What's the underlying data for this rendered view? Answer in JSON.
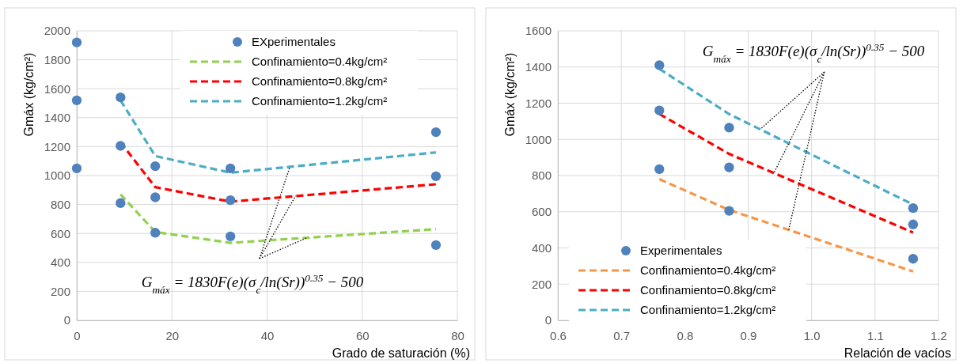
{
  "chart_data": [
    {
      "type": "scatter",
      "xlabel": "Grado de saturación (%)",
      "ylabel": "Gmáx (kg/cm²)",
      "xlim": [
        0,
        80
      ],
      "xticks": [
        0,
        20,
        40,
        60,
        80
      ],
      "ylim": [
        0,
        2000
      ],
      "yticks": [
        0,
        200,
        400,
        600,
        800,
        1000,
        1200,
        1400,
        1600,
        1800,
        2000
      ],
      "grid": true,
      "legend": "top right",
      "annotations": [
        {
          "text": "G$_{máx}$ = 1830F(e)(σ$_{c}$/ln(Sr))$^{0.35}$ − 500",
          "x": 46,
          "y": 860
        }
      ],
      "series": [
        {
          "name": "EXperimentales",
          "type": "scatter",
          "marker": "circle",
          "color": "#4f81bd",
          "x": [
            0,
            0,
            0,
            9.2,
            9.2,
            9.2,
            16.5,
            16.5,
            16.5,
            32.3,
            32.3,
            32.3,
            75.5,
            75.5,
            75.5
          ],
          "values": [
            1920,
            1520,
            1050,
            1540,
            1205,
            810,
            1065,
            850,
            605,
            1050,
            830,
            580,
            1300,
            995,
            520
          ]
        },
        {
          "name": "Confinamiento=0.4kg/cm²",
          "type": "line",
          "line_style": "dashed",
          "color": "#92d050",
          "x": [
            9.2,
            16.5,
            32.3,
            75.5
          ],
          "values": [
            870,
            610,
            535,
            630
          ]
        },
        {
          "name": "Confinamiento=0.8kg/cm²",
          "type": "line",
          "line_style": "dashed",
          "color": "#ff0000",
          "x": [
            9.2,
            16.5,
            32.3,
            75.5
          ],
          "values": [
            1230,
            920,
            820,
            940
          ]
        },
        {
          "name": "Confinamiento=1.2kg/cm²",
          "type": "line",
          "line_style": "dashed",
          "color": "#4bacc6",
          "x": [
            9.2,
            16.5,
            32.3,
            75.5
          ],
          "values": [
            1520,
            1135,
            1020,
            1160
          ]
        }
      ]
    },
    {
      "type": "scatter",
      "xlabel": "Relación de vacíos",
      "ylabel": "Gmáx (kg/cm²)",
      "xlim": [
        0.6,
        1.2
      ],
      "xticks": [
        {
          "value": 0.6,
          "label": "0.6"
        },
        {
          "value": 0.7,
          "label": "0.7"
        },
        {
          "value": 0.8,
          "label": "0.8"
        },
        {
          "value": 0.9,
          "label": "0.9"
        },
        {
          "value": 1.0,
          "label": "1.0"
        },
        {
          "value": 1.1,
          "label": "1.1"
        },
        {
          "value": 1.2,
          "label": "1.2"
        }
      ],
      "ylim": [
        0,
        1600
      ],
      "yticks": [
        0,
        200,
        400,
        600,
        800,
        1000,
        1200,
        1400,
        1600
      ],
      "grid": true,
      "legend": "bottom left",
      "annotations": [
        {
          "text": "G$_{máx}$ = 1830F(e)(σ$_{c}$/ln(Sr))$^{0.35}$ − 500",
          "x": 0.94,
          "y": 810
        }
      ],
      "series": [
        {
          "name": "Experimentales",
          "type": "scatter",
          "marker": "circle",
          "color": "#4f81bd",
          "x": [
            0.76,
            0.76,
            0.76,
            0.87,
            0.87,
            0.87,
            1.16,
            1.16,
            1.16
          ],
          "values": [
            1410,
            1160,
            835,
            1065,
            845,
            605,
            620,
            530,
            340
          ]
        },
        {
          "name": "Confinamiento=0.4kg/cm²",
          "type": "line",
          "line_style": "dashed",
          "color": "#f79646",
          "x": [
            0.76,
            0.87,
            1.16
          ],
          "values": [
            780,
            610,
            270
          ]
        },
        {
          "name": "Confinamiento=0.8kg/cm²",
          "type": "line",
          "line_style": "dashed",
          "color": "#ff0000",
          "x": [
            0.76,
            0.87,
            1.16
          ],
          "values": [
            1140,
            920,
            485
          ]
        },
        {
          "name": "Confinamiento=1.2kg/cm²",
          "type": "line",
          "line_style": "dashed",
          "color": "#4bacc6",
          "x": [
            0.76,
            0.87,
            1.16
          ],
          "values": [
            1390,
            1140,
            640
          ]
        }
      ]
    }
  ]
}
